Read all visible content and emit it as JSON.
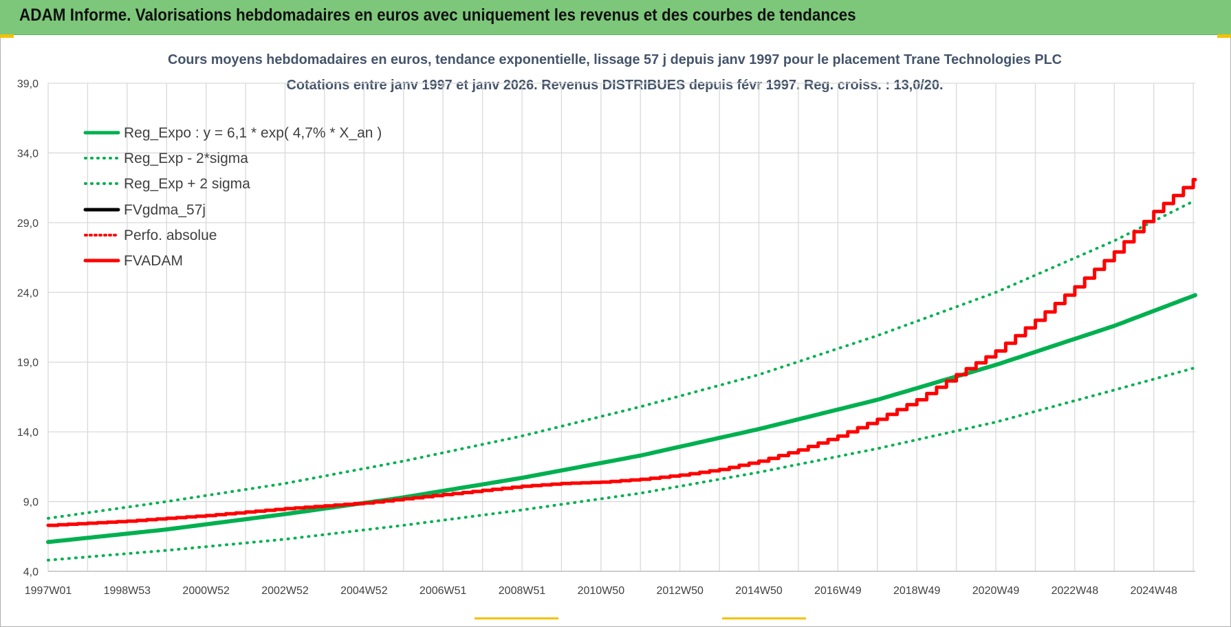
{
  "header": {
    "title": "ADAM Informe. Valorisations hebdomadaires en euros avec uniquement les revenus et des courbes de tendances"
  },
  "colors": {
    "header_bg": "#7dc77a",
    "trend": "#00b050",
    "adam": "#ff0000",
    "fvgdma": "#000000",
    "accent": "#f2c200"
  },
  "chart_data": {
    "type": "line",
    "title": "Cours moyens hebdomadaires en euros, tendance exponentielle, lissage 57 j depuis janv 1997 pour le placement Trane Technologies PLC",
    "subtitle": "Cotations entre janv 1997 et janv 2026. Revenus DISTRIBUES depuis févr 1997. Reg. croiss. : 13,0/20.",
    "xlabel": "",
    "ylabel": "",
    "ylim": [
      4.0,
      39.0
    ],
    "yticks": [
      "4,0",
      "9,0",
      "14,0",
      "19,0",
      "24,0",
      "29,0",
      "34,0",
      "39,0"
    ],
    "xlim": [
      1997.0,
      2026.05
    ],
    "xticks": [
      {
        "x": 1997.0,
        "label": "1997W01"
      },
      {
        "x": 1999.0,
        "label": "1998W53"
      },
      {
        "x": 2001.0,
        "label": "2000W52"
      },
      {
        "x": 2003.0,
        "label": "2002W52"
      },
      {
        "x": 2005.0,
        "label": "2004W52"
      },
      {
        "x": 2007.0,
        "label": "2006W51"
      },
      {
        "x": 2009.0,
        "label": "2008W51"
      },
      {
        "x": 2011.0,
        "label": "2010W50"
      },
      {
        "x": 2013.0,
        "label": "2012W50"
      },
      {
        "x": 2015.0,
        "label": "2014W50"
      },
      {
        "x": 2017.0,
        "label": "2016W49"
      },
      {
        "x": 2019.0,
        "label": "2018W49"
      },
      {
        "x": 2021.0,
        "label": "2020W49"
      },
      {
        "x": 2023.0,
        "label": "2022W48"
      },
      {
        "x": 2025.0,
        "label": "2024W48"
      }
    ],
    "grid": true,
    "legend_position": "top-left",
    "series": [
      {
        "name": "Reg_Expo : y = 6,1 * exp( 4,7% *  X_an )",
        "style": "solid",
        "color": "#00b050",
        "x": [
          1997,
          2000,
          2003,
          2006,
          2009,
          2012,
          2015,
          2018,
          2021,
          2024,
          2026.05
        ],
        "y": [
          6.1,
          7.0,
          8.1,
          9.3,
          10.7,
          12.3,
          14.2,
          16.3,
          18.8,
          21.6,
          23.8
        ]
      },
      {
        "name": "Reg_Exp - 2*sigma",
        "style": "dotted",
        "color": "#00b050",
        "x": [
          1997,
          2000,
          2003,
          2006,
          2009,
          2012,
          2015,
          2018,
          2021,
          2024,
          2026.05
        ],
        "y": [
          4.8,
          5.5,
          6.3,
          7.3,
          8.4,
          9.6,
          11.1,
          12.8,
          14.7,
          17.0,
          18.6
        ]
      },
      {
        "name": "Reg_Exp + 2 sigma",
        "style": "dotted",
        "color": "#00b050",
        "x": [
          1997,
          2000,
          2003,
          2006,
          2009,
          2012,
          2015,
          2018,
          2021,
          2024,
          2026.05
        ],
        "y": [
          7.8,
          9.0,
          10.3,
          11.9,
          13.7,
          15.8,
          18.1,
          20.9,
          24.0,
          27.7,
          30.6
        ]
      },
      {
        "name": "FVgdma_57j",
        "style": "solid",
        "color": "#000000",
        "x": [
          1997,
          1999,
          2001,
          2003,
          2005,
          2007,
          2009,
          2010,
          2011,
          2012,
          2013,
          2014,
          2015,
          2016,
          2017,
          2018,
          2019,
          2020,
          2021,
          2022,
          2023,
          2024,
          2025,
          2026.05
        ],
        "y": [
          7.3,
          7.6,
          8.0,
          8.5,
          8.9,
          9.5,
          10.1,
          10.3,
          10.4,
          10.6,
          10.9,
          11.3,
          11.9,
          12.7,
          13.7,
          14.9,
          16.3,
          18.1,
          19.8,
          22.0,
          24.4,
          26.9,
          29.8,
          32.2
        ]
      },
      {
        "name": "Perfo. absolue",
        "style": "dotted",
        "color": "#ff0000",
        "x": [
          1997,
          1999,
          2001,
          2003,
          2005,
          2007,
          2009,
          2010,
          2011,
          2012,
          2013,
          2014,
          2015,
          2016,
          2017,
          2018,
          2019,
          2020,
          2021,
          2022,
          2023,
          2024,
          2025,
          2026.05
        ],
        "y": [
          7.3,
          7.6,
          8.0,
          8.5,
          8.9,
          9.5,
          10.1,
          10.3,
          10.4,
          10.6,
          10.9,
          11.3,
          11.9,
          12.7,
          13.7,
          14.9,
          16.3,
          18.1,
          19.8,
          22.0,
          24.4,
          26.9,
          29.8,
          32.2
        ]
      },
      {
        "name": "FVADAM",
        "style": "solid",
        "color": "#ff0000",
        "x": [
          1997,
          1999,
          2001,
          2003,
          2005,
          2007,
          2009,
          2010,
          2011,
          2012,
          2013,
          2014,
          2015,
          2016,
          2017,
          2018,
          2019,
          2020,
          2021,
          2022,
          2023,
          2024,
          2025,
          2026.05
        ],
        "y": [
          7.3,
          7.6,
          8.0,
          8.5,
          8.9,
          9.5,
          10.1,
          10.3,
          10.4,
          10.6,
          10.9,
          11.3,
          11.9,
          12.7,
          13.7,
          14.9,
          16.3,
          18.1,
          19.8,
          22.0,
          24.4,
          26.9,
          29.8,
          32.2
        ]
      }
    ]
  }
}
